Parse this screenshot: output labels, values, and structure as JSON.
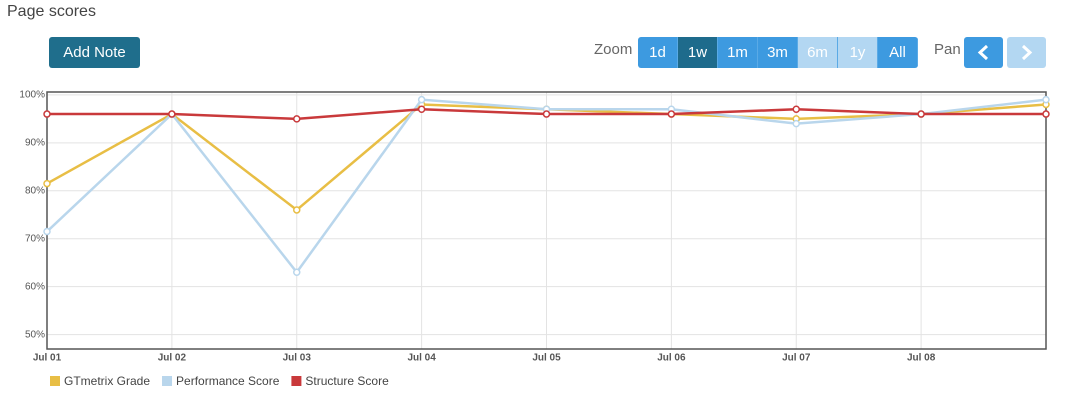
{
  "page": {
    "title": "Page scores",
    "add_note": "Add Note",
    "zoom_label": "Zoom",
    "zoom_options": [
      "1d",
      "1w",
      "1m",
      "3m",
      "6m",
      "1y",
      "All"
    ],
    "pan_label": "Pan"
  },
  "chart_data": {
    "type": "line",
    "categories": [
      "Jul 01",
      "Jul 02",
      "Jul 03",
      "Jul 04",
      "Jul 05",
      "Jul 06",
      "Jul 07",
      "Jul 08",
      null
    ],
    "series": [
      {
        "name": "GTmetrix Grade",
        "color": "#e8be45",
        "values": [
          81.5,
          96,
          76,
          98,
          97,
          96,
          95,
          96,
          98
        ]
      },
      {
        "name": "Performance Score",
        "color": "#b9d6ec",
        "values": [
          71.5,
          96,
          63,
          99,
          97,
          97,
          94,
          96,
          99
        ]
      },
      {
        "name": "Structure Score",
        "color": "#c9393b",
        "values": [
          96,
          96,
          95,
          97,
          96,
          96,
          97,
          96,
          96
        ]
      }
    ],
    "ylim": [
      47,
      100.6
    ],
    "yticks": [
      {
        "value": 50,
        "label": "50%"
      },
      {
        "value": 60,
        "label": "60%"
      },
      {
        "value": 70,
        "label": "70%"
      },
      {
        "value": 80,
        "label": "80%"
      },
      {
        "value": 90,
        "label": "90%"
      },
      {
        "value": 100,
        "label": "100%"
      }
    ],
    "grid": true
  }
}
